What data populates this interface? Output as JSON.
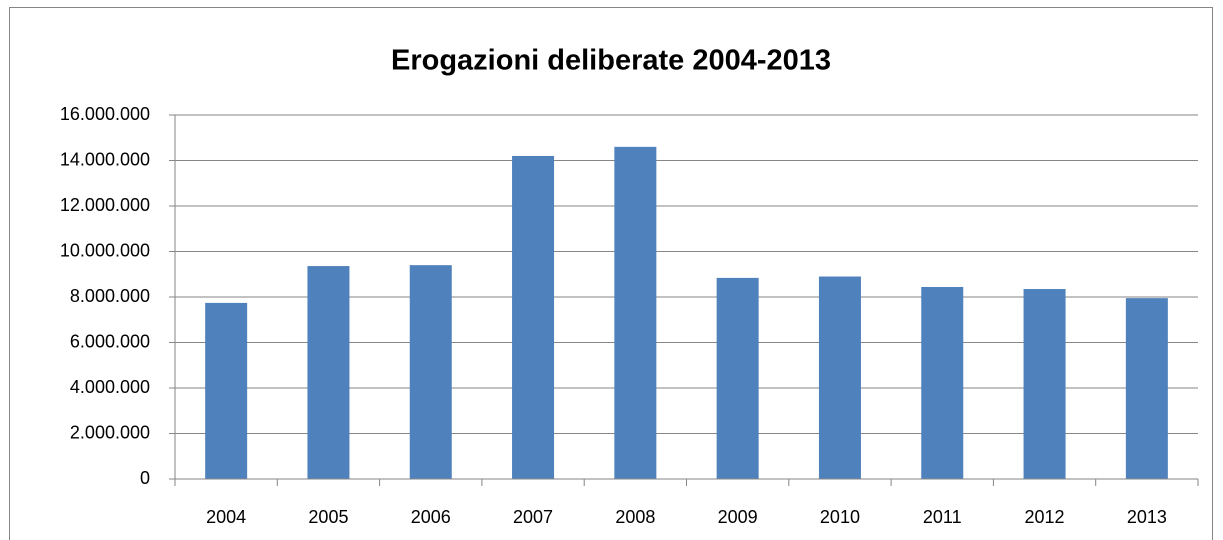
{
  "chart_data": {
    "type": "bar",
    "title": "Erogazioni deliberate 2004-2013",
    "categories": [
      "2004",
      "2005",
      "2006",
      "2007",
      "2008",
      "2009",
      "2010",
      "2011",
      "2012",
      "2013"
    ],
    "values": [
      7740000,
      9360000,
      9400000,
      14200000,
      14600000,
      8840000,
      8900000,
      8440000,
      8350000,
      7950000
    ],
    "color": "#4f81bd",
    "ylim": [
      0,
      16000000
    ],
    "yticks": [
      0,
      {
        "value": 2000000,
        "label": "2.000.000"
      },
      {
        "value": 4000000,
        "label": "4.000.000"
      },
      {
        "value": 6000000,
        "label": "6.000.000"
      },
      {
        "value": 8000000,
        "label": "8.000.000"
      },
      {
        "value": 10000000,
        "label": "10.000.000"
      },
      {
        "value": 12000000,
        "label": "12.000.000"
      },
      {
        "value": 14000000,
        "label": "14.000.000"
      },
      {
        "value": 16000000,
        "label": "16.000.000"
      }
    ],
    "grid": true
  }
}
